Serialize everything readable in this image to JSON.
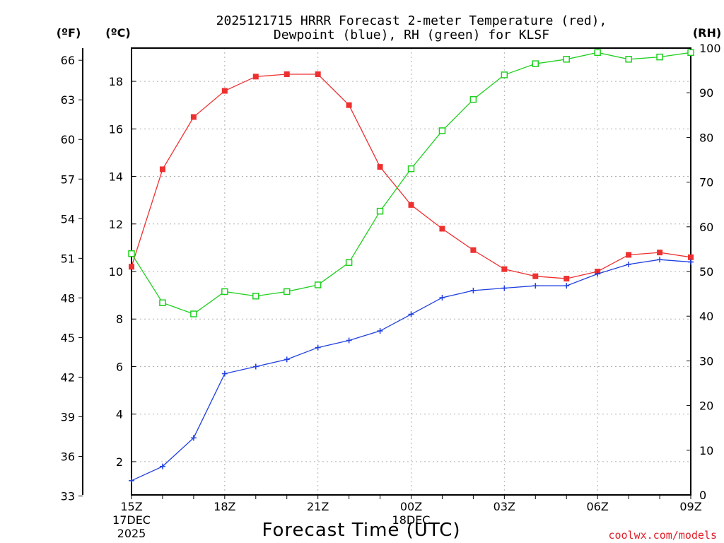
{
  "title_line1": "2025121715 HRRR Forecast 2-meter Temperature (red),",
  "title_line2": "Dewpoint (blue), RH (green) for KLSF",
  "credit": "coolwx.com/models",
  "chart_data": {
    "type": "line",
    "xlabel": "Forecast Time (UTC)",
    "x": [
      "15Z",
      "16Z",
      "17Z",
      "18Z",
      "19Z",
      "20Z",
      "21Z",
      "22Z",
      "23Z",
      "00Z",
      "01Z",
      "02Z",
      "03Z",
      "04Z",
      "05Z",
      "06Z",
      "07Z",
      "08Z",
      "09Z"
    ],
    "x_tick_labels": [
      {
        "i": 0,
        "lines": [
          "15Z",
          "17DEC",
          "2025"
        ]
      },
      {
        "i": 3,
        "lines": [
          "18Z"
        ]
      },
      {
        "i": 6,
        "lines": [
          "21Z"
        ]
      },
      {
        "i": 9,
        "lines": [
          "00Z",
          "18DEC"
        ]
      },
      {
        "i": 12,
        "lines": [
          "03Z"
        ]
      },
      {
        "i": 15,
        "lines": [
          "06Z"
        ]
      },
      {
        "i": 18,
        "lines": [
          "09Z"
        ]
      }
    ],
    "left_axis_f": {
      "unit": "(ºF)",
      "ticks": [
        33,
        36,
        39,
        42,
        45,
        48,
        51,
        54,
        57,
        60,
        63,
        66
      ]
    },
    "left_axis_c": {
      "unit": "(ºC)",
      "ticks": [
        2,
        4,
        6,
        8,
        10,
        12,
        14,
        16,
        18
      ],
      "range": [
        0.6,
        19.4
      ]
    },
    "right_axis_rh": {
      "unit": "(RH)",
      "ticks": [
        0,
        10,
        20,
        30,
        40,
        50,
        60,
        70,
        80,
        90,
        100
      ],
      "range": [
        0,
        100
      ]
    },
    "series": [
      {
        "key": "temperature",
        "axis": "c",
        "color": "#ee3030",
        "marker": "filled-square",
        "values": [
          10.2,
          14.3,
          16.5,
          17.6,
          18.2,
          18.3,
          18.3,
          17.0,
          14.4,
          12.8,
          11.8,
          10.9,
          10.1,
          9.8,
          9.7,
          10.0,
          10.7,
          10.8,
          10.6
        ]
      },
      {
        "key": "dewpoint",
        "axis": "c",
        "color": "#2040e0",
        "marker": "plus",
        "values": [
          1.2,
          1.8,
          3.0,
          5.7,
          6.0,
          6.3,
          6.8,
          7.1,
          7.5,
          8.2,
          8.9,
          9.2,
          9.3,
          9.4,
          9.4,
          9.9,
          10.3,
          10.5,
          10.4
        ]
      },
      {
        "key": "rh",
        "axis": "rh",
        "color": "#20d020",
        "marker": "open-square",
        "values": [
          54,
          43,
          40.5,
          45.5,
          44.5,
          45.5,
          47,
          52,
          63.5,
          73,
          81.5,
          88.5,
          94,
          96.5,
          97.5,
          99,
          97.5,
          98,
          99
        ]
      }
    ]
  }
}
